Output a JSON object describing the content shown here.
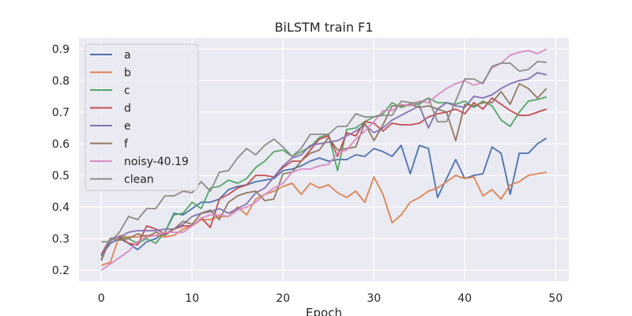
{
  "chart_data": {
    "type": "line",
    "title": "BiLSTM train F1",
    "xlabel": "Epoch",
    "ylabel": "",
    "xlim": [
      -2.45,
      51.45
    ],
    "ylim": [
      0.165,
      0.935
    ],
    "xticks": [
      0,
      10,
      20,
      30,
      40,
      50
    ],
    "yticks": [
      0.2,
      0.3,
      0.4,
      0.5,
      0.6,
      0.7,
      0.8,
      0.9
    ],
    "grid": true,
    "legend_position": "top-left",
    "background": "#EAEAF2",
    "x": [
      0,
      1,
      2,
      3,
      4,
      5,
      6,
      7,
      8,
      9,
      10,
      11,
      12,
      13,
      14,
      15,
      16,
      17,
      18,
      19,
      20,
      21,
      22,
      23,
      24,
      25,
      26,
      27,
      28,
      29,
      30,
      31,
      32,
      33,
      34,
      35,
      36,
      37,
      38,
      39,
      40,
      41,
      42,
      43,
      44,
      45,
      46,
      47,
      48,
      49
    ],
    "series": [
      {
        "name": "a",
        "color": "#4C72B0",
        "values": [
          0.245,
          0.285,
          0.3,
          0.285,
          0.265,
          0.29,
          0.3,
          0.32,
          0.38,
          0.375,
          0.395,
          0.415,
          0.415,
          0.425,
          0.455,
          0.465,
          0.47,
          0.48,
          0.485,
          0.49,
          0.515,
          0.52,
          0.53,
          0.545,
          0.555,
          0.545,
          0.55,
          0.55,
          0.565,
          0.56,
          0.585,
          0.575,
          0.56,
          0.595,
          0.505,
          0.595,
          0.585,
          0.43,
          0.49,
          0.55,
          0.49,
          0.5,
          0.505,
          0.59,
          0.57,
          0.44,
          0.57,
          0.57,
          0.6,
          0.618
        ]
      },
      {
        "name": "b",
        "color": "#DD8452",
        "values": [
          0.215,
          0.225,
          0.31,
          0.305,
          0.305,
          0.31,
          0.31,
          0.305,
          0.31,
          0.33,
          0.34,
          0.36,
          0.36,
          0.37,
          0.37,
          0.4,
          0.375,
          0.425,
          0.44,
          0.45,
          0.465,
          0.475,
          0.44,
          0.475,
          0.46,
          0.47,
          0.445,
          0.43,
          0.45,
          0.415,
          0.495,
          0.44,
          0.35,
          0.375,
          0.415,
          0.43,
          0.45,
          0.46,
          0.48,
          0.5,
          0.49,
          0.495,
          0.435,
          0.455,
          0.425,
          0.47,
          0.48,
          0.5,
          0.505,
          0.51
        ]
      },
      {
        "name": "c",
        "color": "#55A868",
        "values": [
          0.235,
          0.3,
          0.305,
          0.3,
          0.285,
          0.3,
          0.285,
          0.32,
          0.375,
          0.38,
          0.415,
          0.395,
          0.46,
          0.465,
          0.485,
          0.475,
          0.49,
          0.525,
          0.545,
          0.575,
          0.58,
          0.56,
          0.575,
          0.59,
          0.62,
          0.63,
          0.515,
          0.645,
          0.65,
          0.67,
          0.685,
          0.695,
          0.73,
          0.715,
          0.725,
          0.725,
          0.745,
          0.73,
          0.73,
          0.725,
          0.735,
          0.715,
          0.735,
          0.72,
          0.675,
          0.655,
          0.7,
          0.735,
          0.74,
          0.748
        ]
      },
      {
        "name": "d",
        "color": "#C44E52",
        "values": [
          0.25,
          0.3,
          0.305,
          0.285,
          0.28,
          0.34,
          0.33,
          0.315,
          0.33,
          0.34,
          0.34,
          0.365,
          0.335,
          0.425,
          0.44,
          0.46,
          0.47,
          0.5,
          0.5,
          0.495,
          0.525,
          0.545,
          0.545,
          0.58,
          0.615,
          0.625,
          0.56,
          0.635,
          0.625,
          0.67,
          0.665,
          0.64,
          0.665,
          0.66,
          0.66,
          0.665,
          0.685,
          0.695,
          0.7,
          0.71,
          0.695,
          0.73,
          0.71,
          0.745,
          0.725,
          0.705,
          0.69,
          0.69,
          0.7,
          0.71
        ]
      },
      {
        "name": "e",
        "color": "#8172B3",
        "values": [
          0.245,
          0.3,
          0.305,
          0.32,
          0.325,
          0.325,
          0.325,
          0.33,
          0.33,
          0.345,
          0.37,
          0.38,
          0.385,
          0.395,
          0.38,
          0.395,
          0.41,
          0.445,
          0.46,
          0.495,
          0.53,
          0.555,
          0.565,
          0.595,
          0.6,
          0.605,
          0.61,
          0.625,
          0.64,
          0.66,
          0.635,
          0.65,
          0.675,
          0.69,
          0.705,
          0.72,
          0.65,
          0.71,
          0.73,
          0.72,
          0.715,
          0.75,
          0.745,
          0.755,
          0.775,
          0.79,
          0.8,
          0.805,
          0.825,
          0.818
        ]
      },
      {
        "name": "f",
        "color": "#937860",
        "values": [
          0.23,
          0.3,
          0.295,
          0.3,
          0.315,
          0.305,
          0.32,
          0.31,
          0.33,
          0.355,
          0.345,
          0.38,
          0.39,
          0.36,
          0.415,
          0.435,
          0.445,
          0.45,
          0.42,
          0.425,
          0.505,
          0.51,
          0.545,
          0.57,
          0.58,
          0.62,
          0.58,
          0.585,
          0.59,
          0.665,
          0.61,
          0.66,
          0.72,
          0.72,
          0.725,
          0.715,
          0.72,
          0.71,
          0.7,
          0.61,
          0.725,
          0.72,
          0.73,
          0.73,
          0.765,
          0.725,
          0.79,
          0.775,
          0.745,
          0.775
        ]
      },
      {
        "name": "noisy-40.19",
        "color": "#DA8BC3",
        "values": [
          0.2,
          0.22,
          0.24,
          0.26,
          0.29,
          0.305,
          0.31,
          0.32,
          0.32,
          0.32,
          0.34,
          0.365,
          0.375,
          0.375,
          0.37,
          0.39,
          0.4,
          0.415,
          0.44,
          0.46,
          0.475,
          0.51,
          0.52,
          0.52,
          0.53,
          0.535,
          0.57,
          0.58,
          0.615,
          0.64,
          0.67,
          0.705,
          0.705,
          0.725,
          0.72,
          0.735,
          0.73,
          0.755,
          0.775,
          0.79,
          0.8,
          0.785,
          0.795,
          0.84,
          0.855,
          0.88,
          0.89,
          0.895,
          0.885,
          0.9
        ]
      },
      {
        "name": "clean",
        "color": "#8C8C8C",
        "values": [
          0.29,
          0.29,
          0.32,
          0.37,
          0.36,
          0.395,
          0.395,
          0.435,
          0.435,
          0.45,
          0.445,
          0.48,
          0.45,
          0.51,
          0.515,
          0.555,
          0.585,
          0.565,
          0.595,
          0.615,
          0.59,
          0.56,
          0.585,
          0.63,
          0.63,
          0.63,
          0.655,
          0.655,
          0.695,
          0.685,
          0.685,
          0.69,
          0.69,
          0.735,
          0.73,
          0.73,
          0.745,
          0.67,
          0.67,
          0.735,
          0.805,
          0.805,
          0.79,
          0.845,
          0.855,
          0.855,
          0.83,
          0.835,
          0.86,
          0.858
        ]
      }
    ]
  }
}
